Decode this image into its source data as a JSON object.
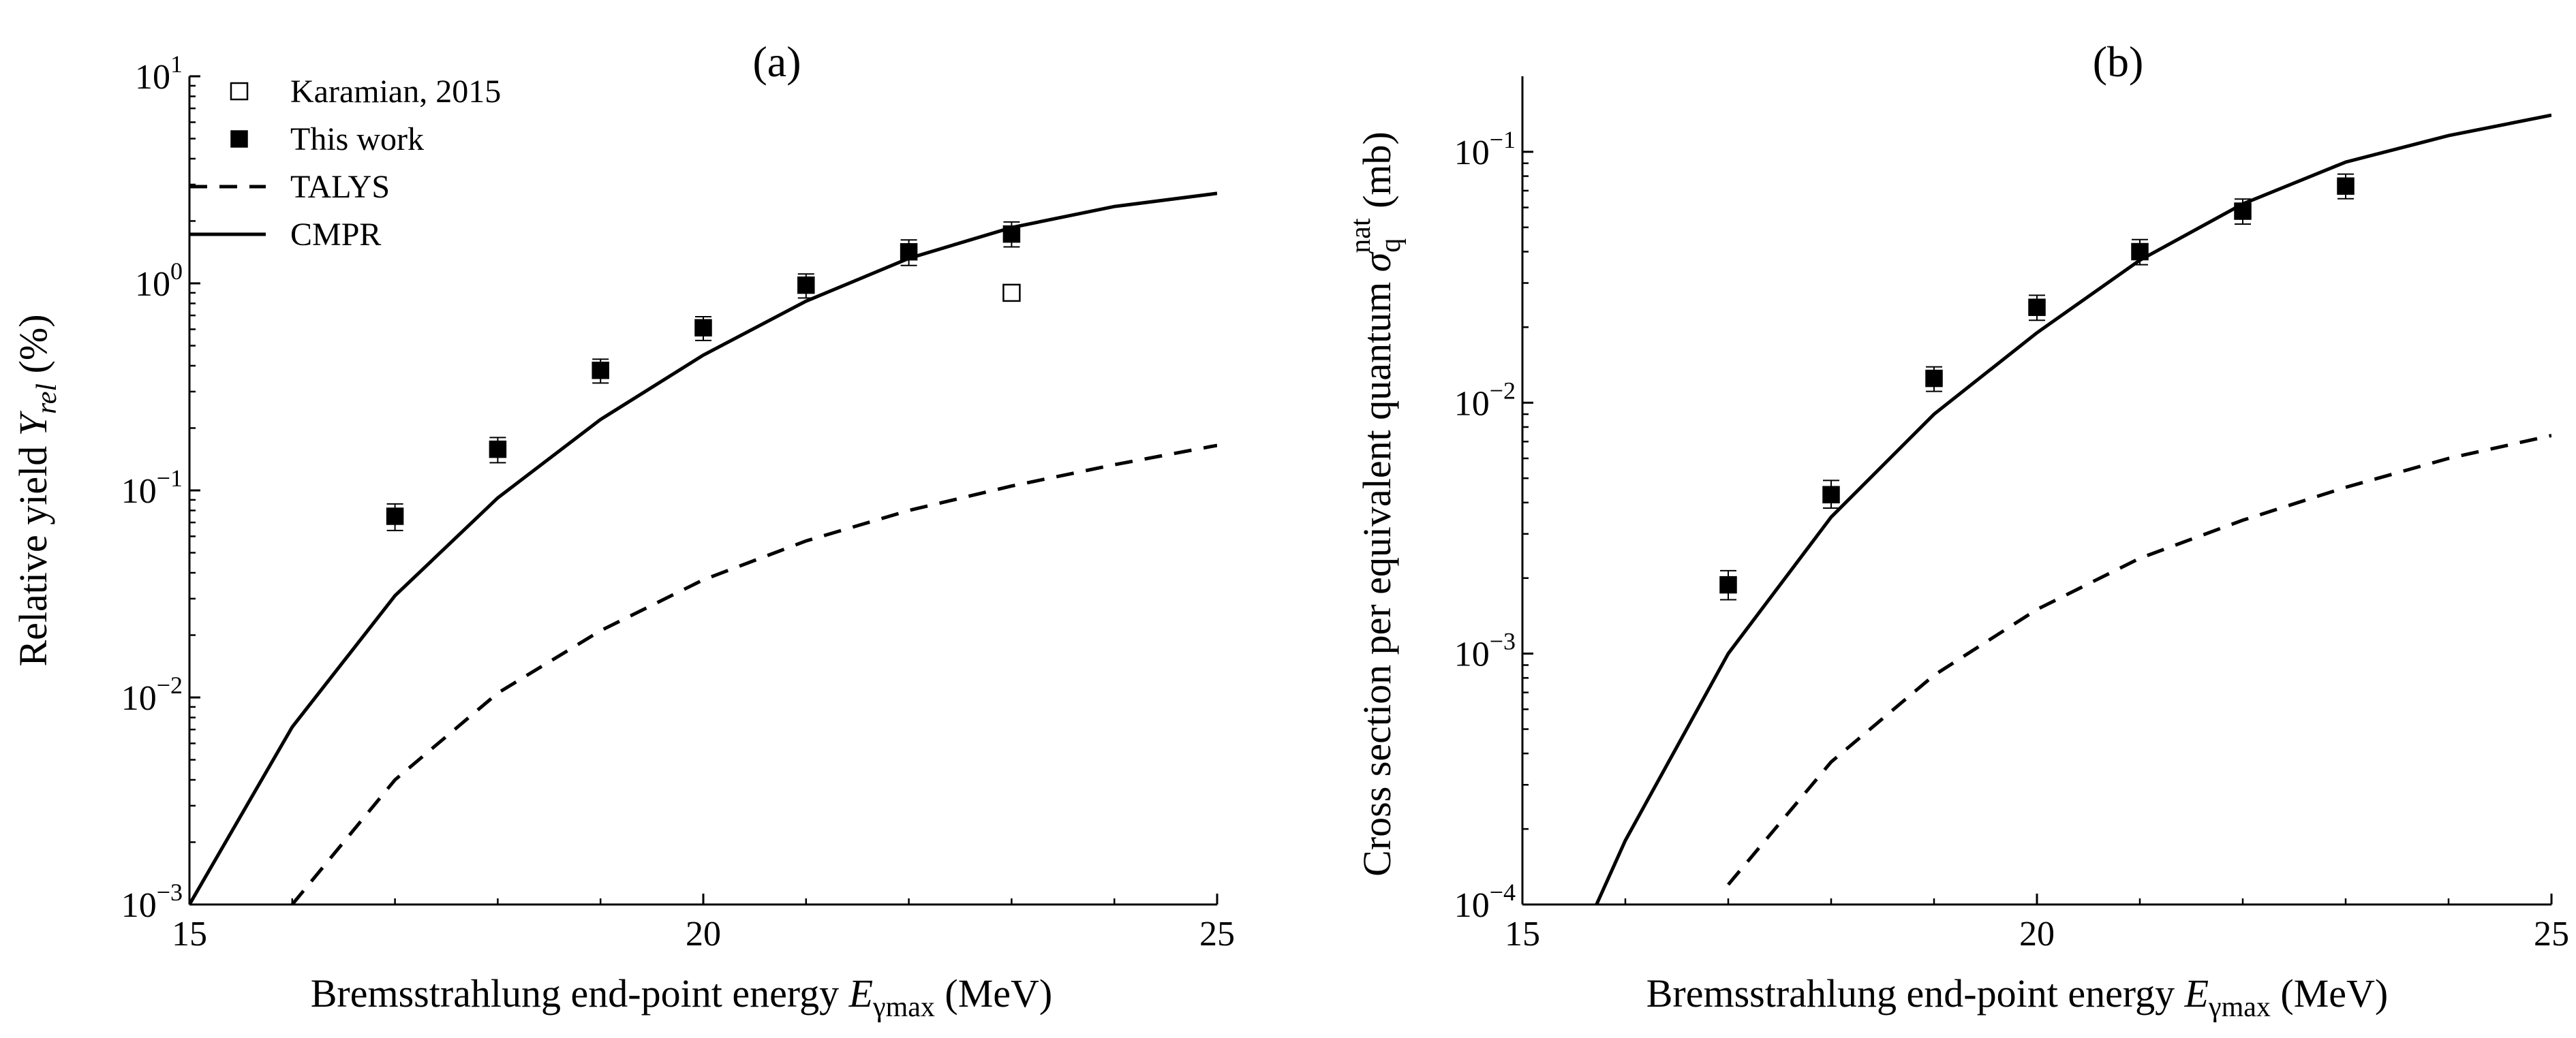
{
  "chart_data": [
    {
      "type": "line",
      "panel_label": "(a)",
      "x_scale": "linear",
      "y_scale": "log",
      "xlim": [
        15,
        25
      ],
      "ylim": [
        0.001,
        10
      ],
      "x_ticks": [
        15,
        20,
        25
      ],
      "y_ticks": [
        0.001,
        0.01,
        0.1,
        1,
        10
      ],
      "x_tick_labels": [
        "15",
        "20",
        "25"
      ],
      "y_tick_labels": [
        {
          "base": "10",
          "exp": "−3"
        },
        {
          "base": "10",
          "exp": "−2"
        },
        {
          "base": "10",
          "exp": "−1"
        },
        {
          "base": "10",
          "exp": "0"
        },
        {
          "base": "10",
          "exp": "1"
        }
      ],
      "xlabel": {
        "text": "Bremsstrahlung end-point energy ",
        "var": "E",
        "sub": "γmax",
        "unit": " (MeV)"
      },
      "ylabel": {
        "text": "Relative yield ",
        "var": "Y",
        "sub": "rel",
        "unit": " (%)"
      },
      "legend_position": "top-left",
      "grid": false,
      "series": [
        {
          "name": "Karamian, 2015",
          "kind": "scatter",
          "marker": "open-square",
          "x": [
            23
          ],
          "y": [
            0.9
          ],
          "yerr_low": [
            null
          ],
          "yerr_high": [
            null
          ]
        },
        {
          "name": "This work",
          "kind": "scatter",
          "marker": "filled-square",
          "x": [
            17,
            18,
            19,
            20,
            21,
            22,
            23
          ],
          "y": [
            0.075,
            0.158,
            0.38,
            0.61,
            0.98,
            1.42,
            1.73
          ],
          "yerr_low": [
            0.064,
            0.136,
            0.33,
            0.53,
            0.85,
            1.22,
            1.5
          ],
          "yerr_high": [
            0.086,
            0.18,
            0.43,
            0.69,
            1.11,
            1.62,
            1.98
          ]
        },
        {
          "name": "TALYS",
          "kind": "line",
          "style": "dashed",
          "x": [
            16,
            17,
            18,
            19,
            20,
            21,
            22,
            23,
            24,
            25
          ],
          "y": [
            0.001,
            0.004,
            0.0105,
            0.021,
            0.037,
            0.057,
            0.08,
            0.105,
            0.133,
            0.165
          ]
        },
        {
          "name": "CMPR",
          "kind": "line",
          "style": "solid",
          "x": [
            15,
            16,
            17,
            18,
            19,
            20,
            21,
            22,
            23,
            24,
            25
          ],
          "y": [
            0.001,
            0.0072,
            0.031,
            0.092,
            0.22,
            0.45,
            0.82,
            1.32,
            1.86,
            2.35,
            2.72
          ]
        }
      ]
    },
    {
      "type": "line",
      "panel_label": "(b)",
      "x_scale": "linear",
      "y_scale": "log",
      "xlim": [
        15,
        25
      ],
      "ylim": [
        0.0001,
        0.2
      ],
      "x_ticks": [
        15,
        20,
        25
      ],
      "y_ticks": [
        0.0001,
        0.001,
        0.01,
        0.1
      ],
      "x_tick_labels": [
        "15",
        "20",
        "25"
      ],
      "y_tick_labels": [
        {
          "base": "10",
          "exp": "−4"
        },
        {
          "base": "10",
          "exp": "−3"
        },
        {
          "base": "10",
          "exp": "−2"
        },
        {
          "base": "10",
          "exp": "−1"
        }
      ],
      "xlabel": {
        "text": "Bremsstrahlung end-point energy ",
        "var": "E",
        "sub": "γmax",
        "unit": " (MeV)"
      },
      "ylabel": {
        "text": "Cross section per equivalent quantum ",
        "var": "σ",
        "sub": "q",
        "sup": "nat",
        "unit": " (mb)"
      },
      "grid": false,
      "series": [
        {
          "kind": "scatter",
          "marker": "filled-square",
          "x": [
            17,
            18,
            19,
            20,
            21,
            22,
            23
          ],
          "y": [
            0.00188,
            0.0043,
            0.0125,
            0.024,
            0.04,
            0.058,
            0.073
          ],
          "yerr_low": [
            0.00164,
            0.0038,
            0.0111,
            0.0213,
            0.0355,
            0.0515,
            0.065
          ],
          "yerr_high": [
            0.00214,
            0.0049,
            0.0139,
            0.0268,
            0.0447,
            0.0648,
            0.0815
          ]
        },
        {
          "kind": "line",
          "style": "dashed",
          "x": [
            17,
            18,
            19,
            20,
            21,
            22,
            23,
            24,
            25
          ],
          "y": [
            0.00012,
            0.00037,
            0.00082,
            0.0015,
            0.0024,
            0.0034,
            0.0046,
            0.006,
            0.0074
          ]
        },
        {
          "kind": "line",
          "style": "solid",
          "x": [
            15.72,
            16,
            17,
            18,
            19,
            20,
            21,
            22,
            23,
            24,
            25
          ],
          "y": [
            0.0001,
            0.00018,
            0.001,
            0.0035,
            0.009,
            0.019,
            0.037,
            0.062,
            0.091,
            0.116,
            0.14
          ]
        }
      ]
    }
  ]
}
